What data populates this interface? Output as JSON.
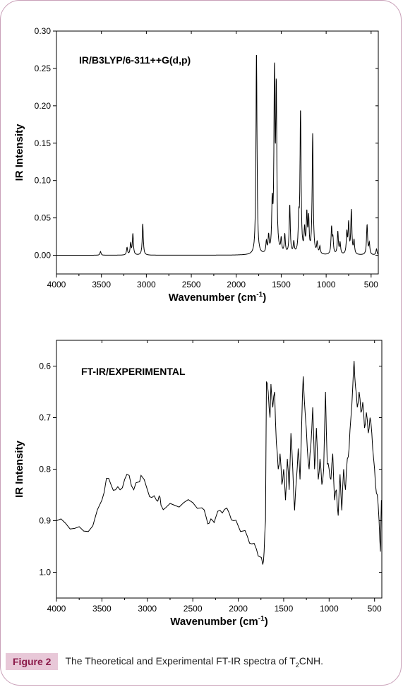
{
  "caption": {
    "label": "Figure 2",
    "text_before": "The Theoretical and Experimental FT-IR spectra of T",
    "subscript": "2",
    "text_after": "CNH."
  },
  "chart_data": [
    {
      "type": "line",
      "title": "IR/B3LYP/6-311++G(d,p)",
      "xlabel": "Wavenumber (cm",
      "xlabel_sup": "-1",
      "xlabel_end": ")",
      "ylabel": "IR Intensity",
      "xlim": [
        4000,
        420
      ],
      "ylim": [
        -0.025,
        0.3
      ],
      "xticks": [
        4000,
        3500,
        3000,
        2500,
        2000,
        1500,
        1000,
        500
      ],
      "yticks": [
        0.0,
        0.05,
        0.1,
        0.15,
        0.2,
        0.25,
        0.3
      ],
      "ytick_labels": [
        "0.00",
        "0.05",
        "0.10",
        "0.15",
        "0.20",
        "0.25",
        "0.30"
      ],
      "peaks": [
        [
          3510,
          0.005
        ],
        [
          3215,
          0.01
        ],
        [
          3175,
          0.015
        ],
        [
          3150,
          0.028
        ],
        [
          3040,
          0.042
        ],
        [
          1775,
          0.272
        ],
        [
          1665,
          0.015
        ],
        [
          1640,
          0.022
        ],
        [
          1600,
          0.06
        ],
        [
          1575,
          0.232
        ],
        [
          1555,
          0.21
        ],
        [
          1500,
          0.018
        ],
        [
          1460,
          0.025
        ],
        [
          1405,
          0.065
        ],
        [
          1360,
          0.015
        ],
        [
          1305,
          0.04
        ],
        [
          1285,
          0.19
        ],
        [
          1240,
          0.03
        ],
        [
          1215,
          0.05
        ],
        [
          1195,
          0.045
        ],
        [
          1150,
          0.16
        ],
        [
          1100,
          0.015
        ],
        [
          1070,
          0.01
        ],
        [
          940,
          0.035
        ],
        [
          925,
          0.02
        ],
        [
          870,
          0.03
        ],
        [
          845,
          0.015
        ],
        [
          770,
          0.028
        ],
        [
          750,
          0.04
        ],
        [
          720,
          0.058
        ],
        [
          690,
          0.018
        ],
        [
          545,
          0.04
        ],
        [
          520,
          0.015
        ],
        [
          440,
          0.008
        ]
      ]
    },
    {
      "type": "line",
      "title": "FT-IR/EXPERIMENTAL",
      "xlabel": "Wavenumber (cm",
      "xlabel_sup": "-1",
      "xlabel_end": ")",
      "ylabel": "IR Intensity",
      "xlim": [
        4000,
        420
      ],
      "ylim": [
        1.05,
        0.55
      ],
      "y_inverted": true,
      "xticks": [
        4000,
        3500,
        3000,
        2500,
        2000,
        1500,
        1000,
        500
      ],
      "yticks": [
        0.6,
        0.7,
        0.8,
        0.9,
        1.0
      ],
      "ytick_labels": [
        "0.6",
        "0.7",
        "0.8",
        "0.9",
        "1.0"
      ],
      "points": [
        [
          4000,
          0.9
        ],
        [
          3900,
          0.905
        ],
        [
          3800,
          0.915
        ],
        [
          3700,
          0.92
        ],
        [
          3600,
          0.91
        ],
        [
          3500,
          0.86
        ],
        [
          3450,
          0.818
        ],
        [
          3400,
          0.83
        ],
        [
          3350,
          0.84
        ],
        [
          3300,
          0.84
        ],
        [
          3250,
          0.82
        ],
        [
          3200,
          0.812
        ],
        [
          3150,
          0.84
        ],
        [
          3100,
          0.825
        ],
        [
          3070,
          0.812
        ],
        [
          3000,
          0.84
        ],
        [
          2950,
          0.855
        ],
        [
          2900,
          0.86
        ],
        [
          2870,
          0.852
        ],
        [
          2850,
          0.87
        ],
        [
          2800,
          0.875
        ],
        [
          2700,
          0.87
        ],
        [
          2600,
          0.865
        ],
        [
          2500,
          0.865
        ],
        [
          2400,
          0.875
        ],
        [
          2350,
          0.895
        ],
        [
          2320,
          0.905
        ],
        [
          2280,
          0.9
        ],
        [
          2250,
          0.895
        ],
        [
          2200,
          0.88
        ],
        [
          2150,
          0.878
        ],
        [
          2100,
          0.885
        ],
        [
          2050,
          0.9
        ],
        [
          2000,
          0.91
        ],
        [
          1950,
          0.92
        ],
        [
          1900,
          0.93
        ],
        [
          1850,
          0.945
        ],
        [
          1800,
          0.955
        ],
        [
          1760,
          0.97
        ],
        [
          1730,
          0.985
        ],
        [
          1715,
          0.96
        ],
        [
          1700,
          0.9
        ],
        [
          1690,
          0.63
        ],
        [
          1670,
          0.65
        ],
        [
          1650,
          0.7
        ],
        [
          1640,
          0.635
        ],
        [
          1620,
          0.68
        ],
        [
          1600,
          0.65
        ],
        [
          1580,
          0.75
        ],
        [
          1560,
          0.8
        ],
        [
          1540,
          0.77
        ],
        [
          1520,
          0.83
        ],
        [
          1500,
          0.8
        ],
        [
          1480,
          0.86
        ],
        [
          1460,
          0.78
        ],
        [
          1440,
          0.84
        ],
        [
          1420,
          0.73
        ],
        [
          1400,
          0.8
        ],
        [
          1380,
          0.88
        ],
        [
          1360,
          0.82
        ],
        [
          1340,
          0.76
        ],
        [
          1320,
          0.82
        ],
        [
          1300,
          0.7
        ],
        [
          1285,
          0.62
        ],
        [
          1260,
          0.7
        ],
        [
          1240,
          0.76
        ],
        [
          1220,
          0.8
        ],
        [
          1200,
          0.75
        ],
        [
          1180,
          0.68
        ],
        [
          1160,
          0.8
        ],
        [
          1140,
          0.72
        ],
        [
          1120,
          0.82
        ],
        [
          1100,
          0.78
        ],
        [
          1080,
          0.83
        ],
        [
          1060,
          0.8
        ],
        [
          1040,
          0.65
        ],
        [
          1020,
          0.79
        ],
        [
          1000,
          0.8
        ],
        [
          980,
          0.82
        ],
        [
          960,
          0.77
        ],
        [
          940,
          0.86
        ],
        [
          920,
          0.84
        ],
        [
          900,
          0.89
        ],
        [
          880,
          0.81
        ],
        [
          860,
          0.88
        ],
        [
          840,
          0.8
        ],
        [
          820,
          0.84
        ],
        [
          800,
          0.78
        ],
        [
          780,
          0.76
        ],
        [
          760,
          0.7
        ],
        [
          740,
          0.64
        ],
        [
          725,
          0.59
        ],
        [
          710,
          0.64
        ],
        [
          690,
          0.68
        ],
        [
          670,
          0.65
        ],
        [
          650,
          0.69
        ],
        [
          630,
          0.67
        ],
        [
          610,
          0.72
        ],
        [
          590,
          0.69
        ],
        [
          570,
          0.73
        ],
        [
          550,
          0.7
        ],
        [
          530,
          0.73
        ],
        [
          510,
          0.78
        ],
        [
          490,
          0.83
        ],
        [
          470,
          0.85
        ],
        [
          450,
          0.9
        ],
        [
          435,
          0.96
        ],
        [
          425,
          0.86
        ]
      ]
    }
  ]
}
